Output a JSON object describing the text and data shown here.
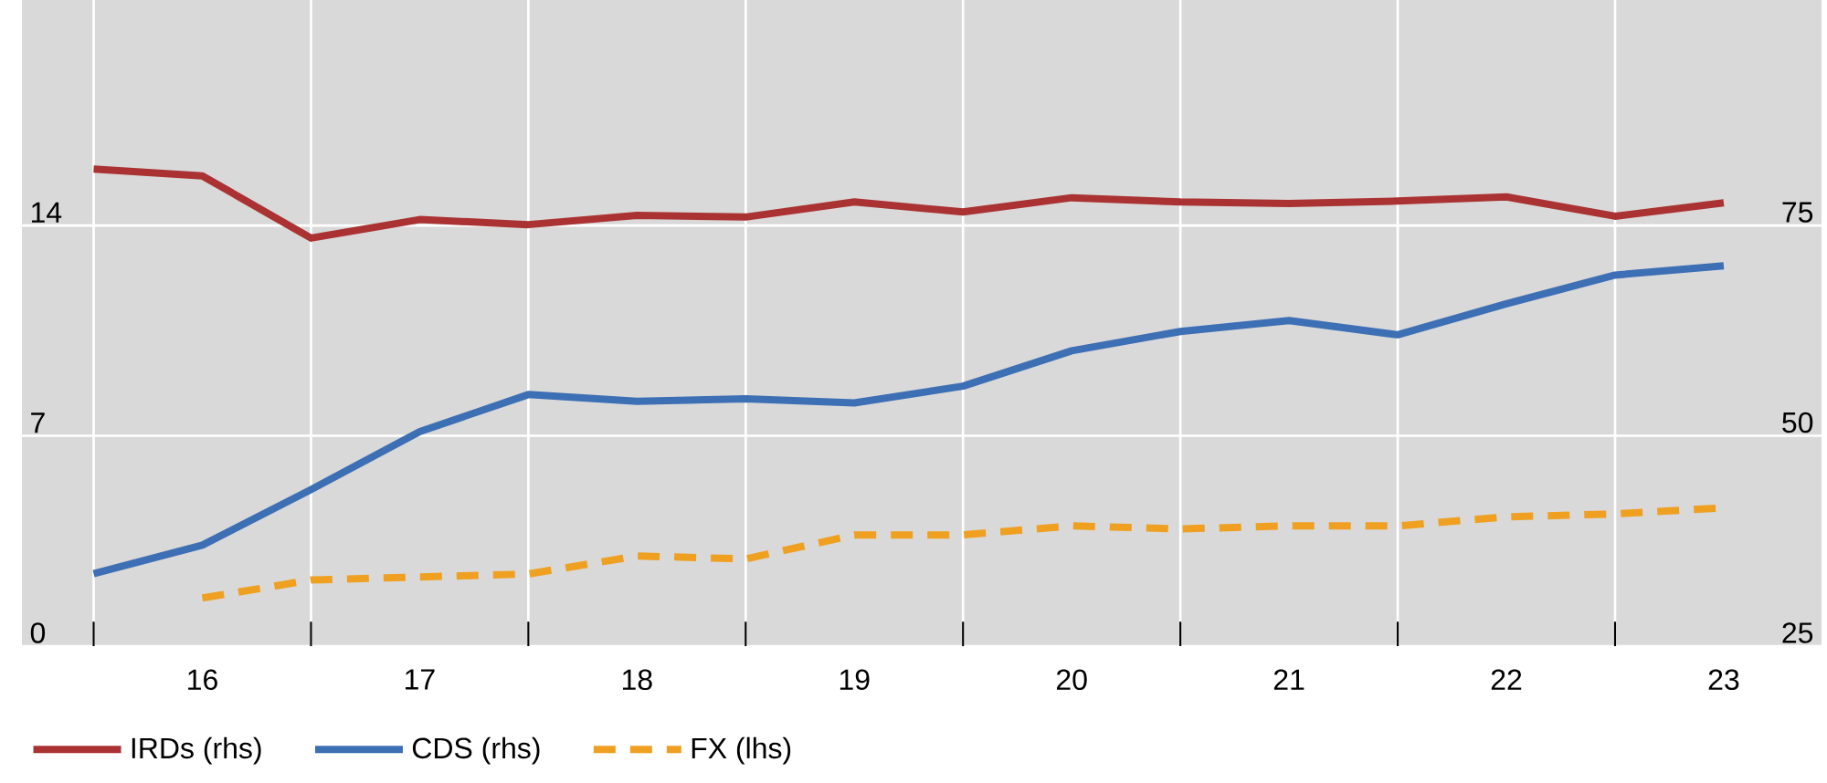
{
  "chart_data": {
    "type": "line",
    "x": [
      15.5,
      16,
      16.5,
      17,
      17.5,
      18,
      18.5,
      19,
      19.5,
      20,
      20.5,
      21,
      21.5,
      22,
      22.5,
      23
    ],
    "xlim": [
      15.17,
      23.45
    ],
    "xticks": [
      {
        "value": 15.5,
        "label": null
      },
      16,
      {
        "value": 16.5,
        "label": null
      },
      17,
      {
        "value": 17.5,
        "label": null
      },
      18,
      {
        "value": 18.5,
        "label": null
      },
      19,
      {
        "value": 19.5,
        "label": null
      },
      20,
      {
        "value": 20.5,
        "label": null
      },
      21,
      {
        "value": 21.5,
        "label": null
      },
      22,
      {
        "value": 22.5,
        "label": null
      },
      23
    ],
    "ylim": [
      0,
      21.5
    ],
    "yticks": [
      0,
      7,
      14
    ],
    "y2lim": [
      25,
      101.8
    ],
    "y2ticks": [
      25,
      50,
      75
    ],
    "grid": true,
    "legend": "bottom",
    "series": [
      {
        "name": "IRDs (rhs)",
        "color": "#ab3232",
        "axis": "y2",
        "values": [
          81.7,
          80.9,
          73.5,
          75.7,
          75.1,
          76.2,
          76.0,
          77.8,
          76.6,
          78.3,
          77.8,
          77.6,
          77.9,
          78.4,
          76.1,
          77.7
        ]
      },
      {
        "name": "CDS (rhs)",
        "color": "#3d6fb5",
        "axis": "y2",
        "values": [
          33.6,
          37.0,
          43.6,
          50.5,
          54.9,
          54.1,
          54.4,
          53.9,
          55.9,
          60.1,
          62.4,
          63.7,
          62.0,
          65.7,
          69.1,
          70.2
        ]
      },
      {
        "name": "FX (lhs)",
        "color": "#f0a020",
        "line_style": "dashed",
        "values": [
          null,
          1.6,
          2.2,
          2.3,
          2.4,
          3.0,
          2.9,
          3.7,
          3.7,
          4.0,
          3.9,
          4.0,
          4.0,
          4.3,
          4.4,
          4.6
        ]
      }
    ]
  }
}
